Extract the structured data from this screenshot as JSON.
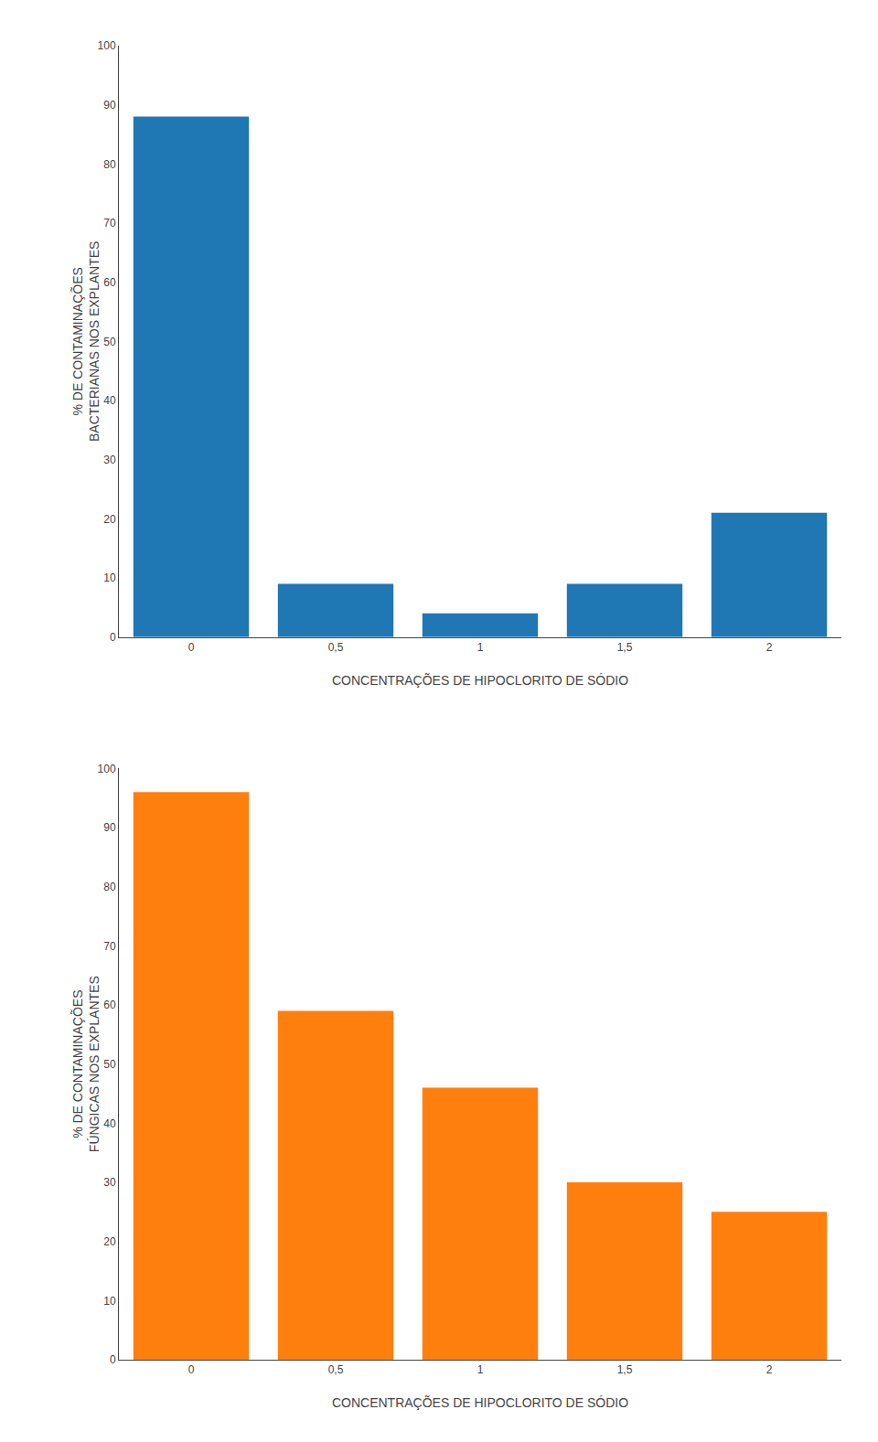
{
  "chart_data": [
    {
      "type": "bar",
      "categories": [
        "0",
        "0,5",
        "1",
        "1,5",
        "2"
      ],
      "values": [
        88,
        9,
        4,
        9,
        21
      ],
      "xlabel": "CONCENTRAÇÕES DE HIPOCLORITO DE SÓDIO",
      "ylabel": "% DE CONTAMINAÇÕES\nBACTERIANAS NOS EXPLANTES",
      "ylim": [
        0,
        100
      ],
      "yticks": [
        0,
        10,
        20,
        30,
        40,
        50,
        60,
        70,
        80,
        90,
        100
      ],
      "grid": false
    },
    {
      "type": "bar",
      "categories": [
        "0",
        "0,5",
        "1",
        "1,5",
        "2"
      ],
      "values": [
        96,
        59,
        46,
        30,
        25
      ],
      "xlabel": "CONCENTRAÇÕES DE HIPOCLORITO DE SÓDIO",
      "ylabel": "% DE CONTAMINAÇÕES\nFÚNGICAS NOS EXPLANTES",
      "ylim": [
        0,
        100
      ],
      "yticks": [
        0,
        10,
        20,
        30,
        40,
        50,
        60,
        70,
        80,
        90,
        100
      ],
      "grid": false
    }
  ]
}
